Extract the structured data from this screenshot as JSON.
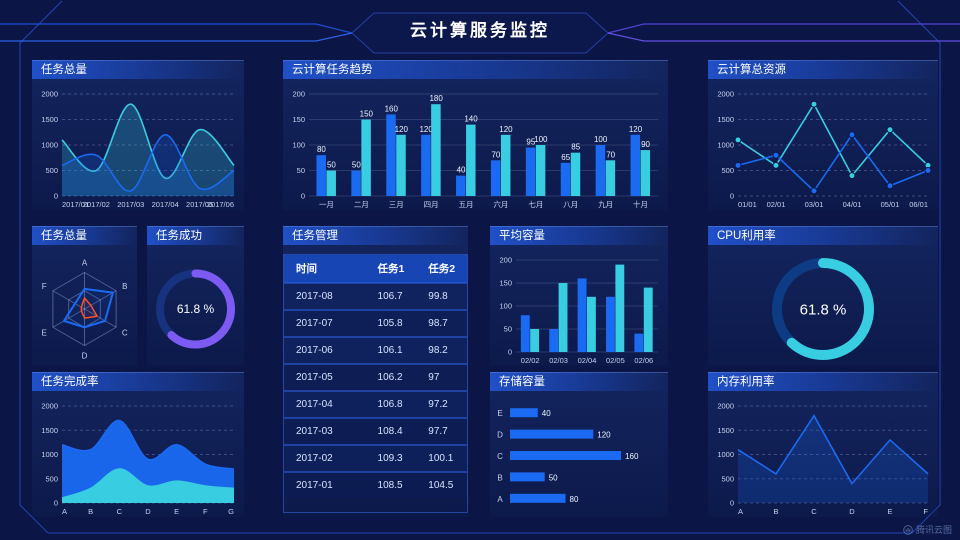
{
  "title": "云计算服务监控",
  "watermark": {
    "label": "腾讯云图"
  },
  "colors": {
    "blue": "#1a6af2",
    "cyan": "#38cde0",
    "purple": "#7d5bf2",
    "purpleTrack": "#17337f",
    "cyanTrack": "#0d3c85",
    "red": "#ff4f2b",
    "axisText": "#c7d2ee",
    "gridDashed": "rgba(170,190,235,0.30)",
    "gridSolid": "rgba(200,215,245,0.16)",
    "barLabel": "#eef3ff",
    "radarGrid": "rgba(170,190,235,0.40)"
  },
  "panels": {
    "task_total_line": {
      "title": "任务总量"
    },
    "task_trend": {
      "title": "云计算任务趋势"
    },
    "cloud_resource": {
      "title": "云计算总资源"
    },
    "task_radar": {
      "title": "任务总量"
    },
    "task_success": {
      "title": "任务成功"
    },
    "task_table": {
      "title": "任务管理"
    },
    "avg_capacity": {
      "title": "平均容量"
    },
    "cpu_usage": {
      "title": "CPU利用率"
    },
    "task_completion": {
      "title": "任务完成率"
    },
    "storage": {
      "title": "存储容量"
    },
    "memory": {
      "title": "内存利用率"
    }
  },
  "chart_data": {
    "task_total_line": {
      "type": "line",
      "smooth": true,
      "area": true,
      "categories": [
        "2017/01",
        "2017/02",
        "2017/03",
        "2017/04",
        "2017/05",
        "2017/06"
      ],
      "series": [
        {
          "name": "series-cyan",
          "color": "cyan",
          "values": [
            1100,
            500,
            1800,
            350,
            1300,
            600
          ],
          "fillOpacity": 0.25
        },
        {
          "name": "series-blue",
          "color": "blue",
          "values": [
            600,
            800,
            100,
            1200,
            150,
            500
          ],
          "fillOpacity": 0.22
        }
      ],
      "ylim": [
        0,
        2000
      ],
      "yticks": [
        0,
        500,
        1000,
        1500,
        2000
      ],
      "grid": "dashed"
    },
    "task_trend": {
      "type": "bar",
      "labels": true,
      "categories": [
        "一月",
        "二月",
        "三月",
        "四月",
        "五月",
        "六月",
        "七月",
        "八月",
        "九月",
        "十月"
      ],
      "series": [
        {
          "name": "任务1",
          "color": "blue",
          "values": [
            80,
            50,
            160,
            120,
            40,
            70,
            95,
            65,
            100,
            120
          ]
        },
        {
          "name": "任务2",
          "color": "cyan",
          "values": [
            50,
            150,
            120,
            180,
            140,
            120,
            100,
            85,
            70,
            90
          ]
        }
      ],
      "ylim": [
        0,
        200
      ],
      "yticks": [
        0,
        50,
        100,
        150,
        200
      ],
      "grid": "solid"
    },
    "cloud_resource": {
      "type": "line",
      "markers": true,
      "categories": [
        "01/01",
        "02/01",
        "03/01",
        "04/01",
        "05/01",
        "06/01"
      ],
      "series": [
        {
          "name": "series-cyan",
          "color": "cyan",
          "values": [
            1100,
            600,
            1800,
            400,
            1300,
            600
          ]
        },
        {
          "name": "series-blue",
          "color": "blue",
          "values": [
            600,
            800,
            100,
            1200,
            200,
            500
          ]
        }
      ],
      "ylim": [
        0,
        2000
      ],
      "yticks": [
        0,
        500,
        1000,
        1500,
        2000
      ],
      "grid": "dashed"
    },
    "task_radar": {
      "type": "radar",
      "axes": [
        "A",
        "B",
        "C",
        "D",
        "E",
        "F"
      ],
      "max": 100,
      "series": [
        {
          "name": "series-blue",
          "color": "blue",
          "values": [
            55,
            90,
            65,
            50,
            65,
            30
          ]
        },
        {
          "name": "series-red",
          "color": "red",
          "values": [
            30,
            20,
            40,
            25,
            10,
            10
          ]
        }
      ]
    },
    "task_success": {
      "type": "donut",
      "value": 61.8,
      "unit": "%",
      "color": "purple",
      "track": "purpleTrack",
      "stroke": 8,
      "font": 12
    },
    "task_table": {
      "type": "table",
      "headers": [
        "时间",
        "任务1",
        "任务2"
      ],
      "rows": [
        [
          "2017-08",
          "106.7",
          "99.8"
        ],
        [
          "2017-07",
          "105.8",
          "98.7"
        ],
        [
          "2017-06",
          "106.1",
          "98.2"
        ],
        [
          "2017-05",
          "106.2",
          "97"
        ],
        [
          "2017-04",
          "106.8",
          "97.2"
        ],
        [
          "2017-03",
          "108.4",
          "97.7"
        ],
        [
          "2017-02",
          "109.3",
          "100.1"
        ],
        [
          "2017-01",
          "108.5",
          "104.5"
        ]
      ]
    },
    "avg_capacity": {
      "type": "bar",
      "categories": [
        "02/02",
        "02/03",
        "02/04",
        "02/05",
        "02/06"
      ],
      "series": [
        {
          "name": "series-blue",
          "color": "blue",
          "values": [
            80,
            50,
            160,
            120,
            40
          ]
        },
        {
          "name": "series-cyan",
          "color": "cyan",
          "values": [
            50,
            150,
            120,
            190,
            140
          ]
        }
      ],
      "ylim": [
        0,
        200
      ],
      "yticks": [
        0,
        50,
        100,
        150,
        200
      ],
      "grid": "solid"
    },
    "cpu_usage": {
      "type": "donut",
      "value": 61.8,
      "unit": "%",
      "color": "cyan",
      "track": "cyanTrack",
      "stroke": 10,
      "font": 15
    },
    "task_completion": {
      "type": "line",
      "smooth": true,
      "area": true,
      "categories": [
        "A",
        "B",
        "C",
        "D",
        "E",
        "F",
        "G"
      ],
      "series": [
        {
          "name": "series-blue",
          "color": "blue",
          "values": [
            1200,
            1100,
            1700,
            900,
            1200,
            800,
            700
          ],
          "fillOpacity": 0.95
        },
        {
          "name": "series-cyan",
          "color": "cyan",
          "values": [
            100,
            300,
            700,
            350,
            450,
            350,
            300
          ],
          "fillOpacity": 1
        }
      ],
      "ylim": [
        0,
        2000
      ],
      "yticks": [
        0,
        500,
        1000,
        1500,
        2000
      ],
      "grid": "dashed"
    },
    "storage": {
      "type": "hbar",
      "categories": [
        "E",
        "D",
        "C",
        "B",
        "A"
      ],
      "values": [
        40,
        120,
        160,
        50,
        80
      ],
      "xmax": 170,
      "color": "blue"
    },
    "memory": {
      "type": "line",
      "area": true,
      "categories": [
        "A",
        "B",
        "C",
        "D",
        "E",
        "F"
      ],
      "series": [
        {
          "name": "series-blue",
          "color": "blue",
          "values": [
            1100,
            600,
            1800,
            400,
            1300,
            600
          ],
          "fillOpacity": 0.22
        }
      ],
      "ylim": [
        0,
        2000
      ],
      "yticks": [
        0,
        500,
        1000,
        1500,
        2000
      ],
      "grid": "dashed"
    }
  }
}
